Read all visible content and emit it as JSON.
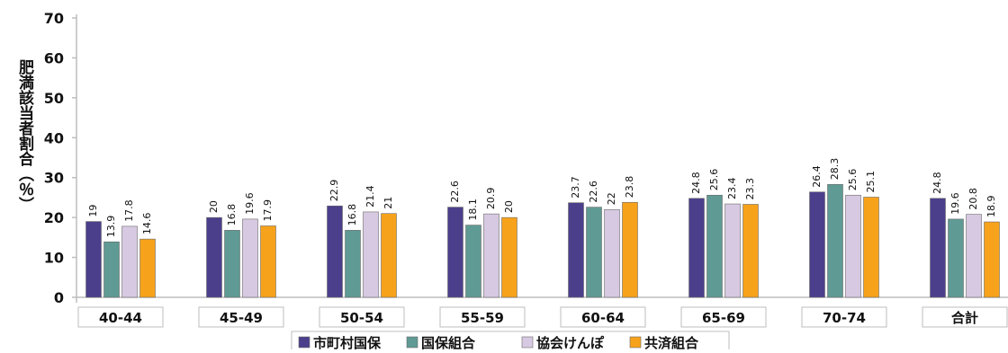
{
  "chart_data": {
    "type": "bar",
    "ylabel": "肥満該当者割合（％）",
    "ylim": [
      0,
      70
    ],
    "yticks": [
      "0",
      "10",
      "20",
      "30",
      "40",
      "50",
      "60",
      "70"
    ],
    "categories": [
      "40-44",
      "45-49",
      "50-54",
      "55-59",
      "60-64",
      "65-69",
      "70-74",
      "合計"
    ],
    "series": [
      {
        "name": "市町村国保",
        "color": "#4b3f8c",
        "values": [
          19,
          20,
          22.9,
          22.6,
          23.7,
          24.8,
          26.4,
          24.8
        ]
      },
      {
        "name": "国保組合",
        "color": "#5f9a94",
        "values": [
          13.9,
          16.8,
          16.8,
          18.1,
          22.6,
          25.6,
          28.3,
          19.6
        ]
      },
      {
        "name": "協会けんぽ",
        "color": "#d7c9e1",
        "values": [
          17.8,
          19.6,
          21.4,
          20.9,
          22,
          23.4,
          25.6,
          20.8
        ]
      },
      {
        "name": "共済組合",
        "color": "#f7a21b",
        "values": [
          14.6,
          17.9,
          21,
          20,
          23.8,
          23.3,
          25.1,
          18.9
        ]
      }
    ],
    "legend": "bottom",
    "grid": false
  }
}
